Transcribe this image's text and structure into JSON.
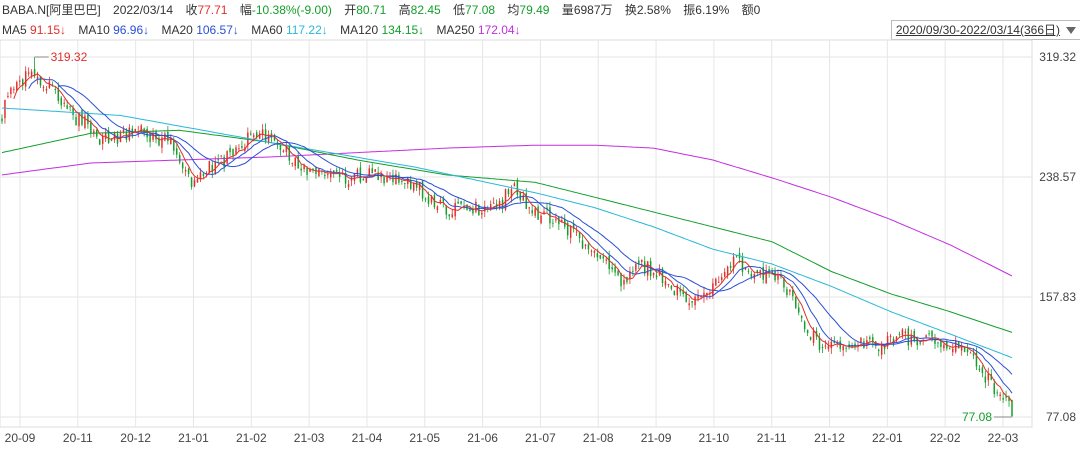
{
  "header": {
    "symbol": "BABA.N[阿里巴巴]",
    "date": "2022/03/14",
    "close_label": "收",
    "close_value": "77.71",
    "change_label": "幅",
    "change_value": "-10.38%(-9.00)",
    "open_label": "开",
    "open_value": "80.71",
    "high_label": "高",
    "high_value": "82.45",
    "low_label": "低",
    "low_value": "77.08",
    "avg_label": "均",
    "avg_value": "79.49",
    "volume_label": "量",
    "volume_value": "6987万",
    "turnover_label": "换",
    "turnover_value": "2.58%",
    "amplitude_label": "振",
    "amplitude_value": "6.19%",
    "amount_label": "额",
    "amount_value": "0"
  },
  "ma_legend": [
    {
      "label": "MA5",
      "value": "91.15↓",
      "color": "#e0302b"
    },
    {
      "label": "MA10",
      "value": "96.96↓",
      "color": "#2a4fd6"
    },
    {
      "label": "MA20",
      "value": "106.57↓",
      "color": "#2a4fd6"
    },
    {
      "label": "MA60",
      "value": "117.22↓",
      "color": "#29b8d8"
    },
    {
      "label": "MA120",
      "value": "134.15↓",
      "color": "#139f2b"
    },
    {
      "label": "MA250",
      "value": "172.04↓",
      "color": "#c22ee0"
    }
  ],
  "range_label": "2020/09/30-2022/03/14(366日)",
  "chart_data": {
    "type": "candlestick",
    "ylim": [
      77.08,
      319.32
    ],
    "yticks": [
      {
        "value": 319.32,
        "label": "319.32"
      },
      {
        "value": 238.57,
        "label": "238.57"
      },
      {
        "value": 157.83,
        "label": "157.83"
      },
      {
        "value": 77.08,
        "label": "77.08"
      }
    ],
    "xtick_labels": [
      "20-09",
      "20-11",
      "20-12",
      "21-01",
      "21-02",
      "21-03",
      "21-04",
      "21-05",
      "21-06",
      "21-07",
      "21-08",
      "21-09",
      "21-10",
      "21-11",
      "21-12",
      "22-01",
      "22-02",
      "22-03"
    ],
    "annotations": {
      "high_label": "319.32",
      "low_label": "77.08"
    },
    "ohlc_key": [
      [
        0,
        280
      ],
      [
        3,
        300
      ],
      [
        7,
        305
      ],
      [
        10,
        310
      ],
      [
        14,
        302
      ],
      [
        17,
        296
      ],
      [
        21,
        288
      ],
      [
        24,
        279
      ],
      [
        28,
        275
      ],
      [
        32,
        262
      ],
      [
        36,
        264
      ],
      [
        40,
        265
      ],
      [
        44,
        268
      ],
      [
        48,
        270
      ],
      [
        52,
        262
      ],
      [
        56,
        265
      ],
      [
        60,
        250
      ],
      [
        64,
        235
      ],
      [
        68,
        244
      ],
      [
        72,
        245
      ],
      [
        76,
        252
      ],
      [
        80,
        260
      ],
      [
        84,
        265
      ],
      [
        88,
        266
      ],
      [
        92,
        262
      ],
      [
        96,
        255
      ],
      [
        100,
        248
      ],
      [
        104,
        244
      ],
      [
        108,
        243
      ],
      [
        112,
        240
      ],
      [
        116,
        236
      ],
      [
        120,
        239
      ],
      [
        124,
        241
      ],
      [
        128,
        238
      ],
      [
        132,
        236
      ],
      [
        136,
        235
      ],
      [
        140,
        232
      ],
      [
        144,
        225
      ],
      [
        148,
        220
      ],
      [
        152,
        216
      ],
      [
        156,
        217
      ],
      [
        160,
        218
      ],
      [
        164,
        216
      ],
      [
        168,
        220
      ],
      [
        172,
        232
      ],
      [
        176,
        222
      ],
      [
        180,
        215
      ],
      [
        184,
        212
      ],
      [
        188,
        208
      ],
      [
        192,
        202
      ],
      [
        196,
        195
      ],
      [
        200,
        188
      ],
      [
        204,
        180
      ],
      [
        208,
        168
      ],
      [
        212,
        172
      ],
      [
        216,
        178
      ],
      [
        220,
        176
      ],
      [
        224,
        170
      ],
      [
        228,
        162
      ],
      [
        232,
        155
      ],
      [
        236,
        158
      ],
      [
        240,
        165
      ],
      [
        244,
        174
      ],
      [
        248,
        182
      ],
      [
        252,
        176
      ],
      [
        256,
        172
      ],
      [
        260,
        172
      ],
      [
        264,
        168
      ],
      [
        268,
        150
      ],
      [
        272,
        136
      ],
      [
        276,
        126
      ],
      [
        280,
        124
      ],
      [
        284,
        126
      ],
      [
        288,
        128
      ],
      [
        292,
        127
      ],
      [
        296,
        124
      ],
      [
        300,
        128
      ],
      [
        304,
        132
      ],
      [
        308,
        128
      ],
      [
        312,
        132
      ],
      [
        316,
        128
      ],
      [
        320,
        127
      ],
      [
        324,
        124
      ],
      [
        328,
        114
      ],
      [
        332,
        105
      ],
      [
        335,
        97
      ],
      [
        338,
        90
      ],
      [
        341,
        87
      ]
    ],
    "ma_series": [
      {
        "name": "MA5",
        "color": "#e0302b"
      },
      {
        "name": "MA10",
        "color": "#2a4fd6"
      },
      {
        "name": "MA20",
        "color": "#2a4fd6"
      },
      {
        "name": "MA60",
        "color": "#29b8d8"
      },
      {
        "name": "MA120",
        "color": "#139f2b"
      },
      {
        "name": "MA250",
        "color": "#c22ee0"
      }
    ],
    "ma_key": {
      "MA60": [
        [
          0,
          285
        ],
        [
          40,
          280
        ],
        [
          90,
          262
        ],
        [
          140,
          245
        ],
        [
          180,
          228
        ],
        [
          200,
          218
        ],
        [
          220,
          205
        ],
        [
          240,
          190
        ],
        [
          260,
          180
        ],
        [
          280,
          165
        ],
        [
          300,
          148
        ],
        [
          320,
          133
        ],
        [
          341,
          117
        ]
      ],
      "MA120": [
        [
          0,
          255
        ],
        [
          30,
          268
        ],
        [
          60,
          270
        ],
        [
          90,
          262
        ],
        [
          120,
          250
        ],
        [
          150,
          240
        ],
        [
          180,
          235
        ],
        [
          210,
          220
        ],
        [
          240,
          205
        ],
        [
          260,
          195
        ],
        [
          280,
          175
        ],
        [
          300,
          160
        ],
        [
          320,
          148
        ],
        [
          341,
          134
        ]
      ],
      "MA250": [
        [
          0,
          240
        ],
        [
          30,
          248
        ],
        [
          60,
          250
        ],
        [
          90,
          252
        ],
        [
          120,
          255
        ],
        [
          150,
          258
        ],
        [
          180,
          260
        ],
        [
          200,
          260
        ],
        [
          220,
          258
        ],
        [
          240,
          250
        ],
        [
          260,
          238
        ],
        [
          280,
          225
        ],
        [
          300,
          210
        ],
        [
          320,
          193
        ],
        [
          341,
          172
        ]
      ]
    },
    "colors": {
      "up": "#e0302b",
      "down": "#139f2b",
      "grid": "#e6e6e6"
    }
  }
}
